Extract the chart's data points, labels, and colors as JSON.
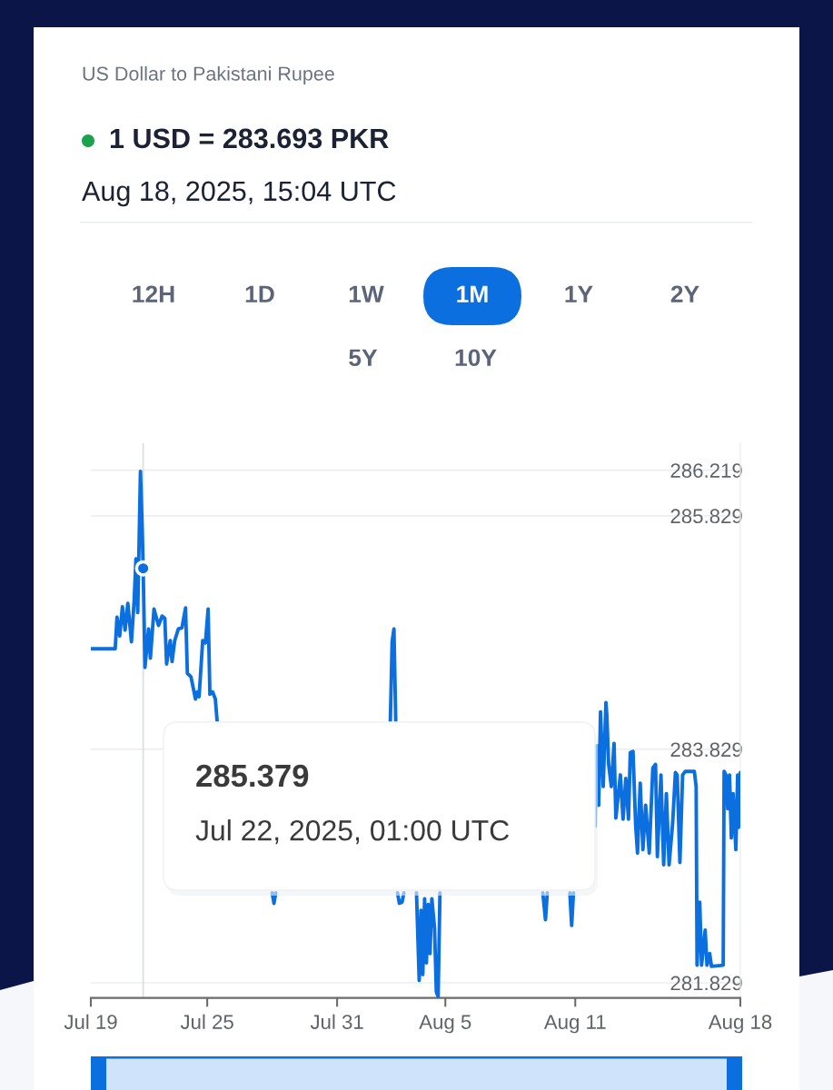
{
  "chart_data": {
    "type": "line",
    "title": "US Dollar to Pakistani Rupee",
    "subtitle": "1 USD = 283.693 PKR",
    "annotations": [
      "Aug 18, 2025, 15:04 UTC",
      "12H",
      "1D",
      "1W",
      "1M",
      "1Y",
      "2Y",
      "5Y",
      "10Y",
      "285.379\nJul 22, 2025, 01:00 UTC"
    ],
    "series": [
      {
        "color": "#0b6fdf",
        "x": [
          "2025-07-19T15:00",
          "2025-07-20T18:00",
          "2025-07-20T20:00",
          "2025-07-20T23:00",
          "2025-07-21T02:00",
          "2025-07-21T05:00",
          "2025-07-21T08:00",
          "2025-07-21T12:00",
          "2025-07-21T15:00",
          "2025-07-21T17:00",
          "2025-07-21T19:00",
          "2025-07-21T22:00",
          "2025-07-22T00:00",
          "2025-07-22T01:00",
          "2025-07-22T03:00",
          "2025-07-22T07:00",
          "2025-07-22T09:00",
          "2025-07-22T13:00",
          "2025-07-22T18:00",
          "2025-07-22T22:00",
          "2025-07-23T01:00",
          "2025-07-23T03:00",
          "2025-07-23T07:00",
          "2025-07-23T09:00",
          "2025-07-23T12:00",
          "2025-07-23T16:00",
          "2025-07-23T20:00",
          "2025-07-24T00:00",
          "2025-07-24T02:00",
          "2025-07-24T06:00",
          "2025-07-24T11:00",
          "2025-07-24T13:00",
          "2025-07-24T15:00",
          "2025-07-24T19:00",
          "2025-07-24T22:00",
          "2025-07-25T01:00",
          "2025-07-25T03:00",
          "2025-07-25T06:00",
          "2025-07-25T09:00",
          "2025-07-25T11:00",
          "2025-07-25T12:00",
          "2025-07-28T00:00",
          "2025-07-28T02:00",
          "2025-07-28T04:00",
          "2025-07-28T05:00",
          "2025-08-02T11:00",
          "2025-08-02T13:00",
          "2025-08-02T15:00",
          "2025-08-02T17:00",
          "2025-08-02T18:00",
          "2025-08-02T19:00",
          "2025-08-02T21:00",
          "2025-08-03T00:00",
          "2025-08-03T02:00",
          "2025-08-03T03:00",
          "2025-08-03T16:00",
          "2025-08-03T19:00",
          "2025-08-03T21:00",
          "2025-08-03T23:00",
          "2025-08-04T01:00",
          "2025-08-04T03:00",
          "2025-08-04T05:00",
          "2025-08-04T07:00",
          "2025-08-04T09:00",
          "2025-08-04T12:00",
          "2025-08-04T14:00",
          "2025-08-04T16:00",
          "2025-08-04T18:00",
          "2025-08-04T19:00",
          "2025-08-09T12:00",
          "2025-08-09T15:00",
          "2025-08-09T17:00",
          "2025-08-09T18:00",
          "2025-08-10T18:00",
          "2025-08-10T20:00",
          "2025-08-10T22:00",
          "2025-08-10T23:00",
          "2025-08-11T22:00",
          "2025-08-12T00:00",
          "2025-08-12T02:00",
          "2025-08-12T04:00",
          "2025-08-12T07:00",
          "2025-08-12T10:00",
          "2025-08-12T11:00",
          "2025-08-12T13:00",
          "2025-08-12T16:00",
          "2025-08-12T19:00",
          "2025-08-12T21:00",
          "2025-08-13T02:00",
          "2025-08-13T05:00",
          "2025-08-13T08:00",
          "2025-08-13T11:00",
          "2025-08-13T13:00",
          "2025-08-13T16:00",
          "2025-08-13T19:00",
          "2025-08-13T21:00",
          "2025-08-14T00:00",
          "2025-08-14T03:00",
          "2025-08-14T06:00",
          "2025-08-14T10:00",
          "2025-08-14T14:00",
          "2025-08-14T17:00",
          "2025-08-14T19:00",
          "2025-08-14T23:00",
          "2025-08-15T02:00",
          "2025-08-15T05:00",
          "2025-08-15T08:00",
          "2025-08-15T12:00",
          "2025-08-15T15:00",
          "2025-08-15T17:00",
          "2025-08-15T20:00",
          "2025-08-15T23:00",
          "2025-08-16T02:00",
          "2025-08-16T12:00",
          "2025-08-16T14:00",
          "2025-08-16T15:00",
          "2025-08-16T18:00",
          "2025-08-16T20:00",
          "2025-08-17T00:00",
          "2025-08-17T02:00",
          "2025-08-17T05:00",
          "2025-08-17T07:00",
          "2025-08-17T20:00",
          "2025-08-17T21:00",
          "2025-08-17T23:00",
          "2025-08-18T01:00",
          "2025-08-18T03:00",
          "2025-08-18T05:00",
          "2025-08-18T07:00",
          "2025-08-18T10:00",
          "2025-08-18T12:00",
          "2025-08-18T13:00",
          "2025-08-18T15:00"
        ],
        "values": [
          284.69,
          284.69,
          284.96,
          284.8,
          285.05,
          284.85,
          285.08,
          284.75,
          285.1,
          285.46,
          285.0,
          286.21,
          285.7,
          285.379,
          284.53,
          284.86,
          284.61,
          285.03,
          284.89,
          284.97,
          284.95,
          284.56,
          284.76,
          284.58,
          284.76,
          284.86,
          284.87,
          285.04,
          284.48,
          284.45,
          284.26,
          284.32,
          284.28,
          284.76,
          284.74,
          285.03,
          284.3,
          284.32,
          284.26,
          284.07,
          null,
          282.6,
          282.51,
          282.6,
          null,
          284.07,
          284.75,
          284.86,
          284.07,
          null,
          282.6,
          282.51,
          282.52,
          282.6,
          null,
          282.6,
          281.85,
          282.45,
          281.9,
          282.55,
          282.0,
          282.5,
          282.08,
          282.55,
          282.3,
          281.75,
          281.71,
          282.6,
          null,
          282.6,
          282.37,
          282.6,
          null,
          282.6,
          282.32,
          282.6,
          null,
          283.17,
          283.86,
          283.35,
          284.15,
          283.51,
          284.23,
          284.12,
          283.7,
          283.51,
          283.88,
          283.24,
          283.61,
          283.23,
          283.58,
          283.23,
          283.8,
          283.81,
          283.17,
          282.94,
          283.54,
          282.97,
          283.35,
          282.94,
          283.67,
          283.7,
          282.91,
          283.61,
          282.84,
          283.45,
          282.84,
          283.2,
          283.63,
          283.61,
          282.86,
          283.61,
          283.64,
          283.64,
          283.51,
          281.98,
          282.52,
          281.98,
          282.28,
          281.98,
          282.08,
          281.97,
          281.98,
          283.64,
          283.61,
          283.32,
          283.61,
          283.07,
          283.45,
          282.97,
          283.61,
          283.16,
          283.63
        ]
      },
      {
        "type": "scatter",
        "color": "#0b6fdf",
        "marker": "circle",
        "x": [
          "2025-07-22T01:00"
        ],
        "values": [
          285.379
        ]
      }
    ],
    "xlim": [
      "2025-07-19T15:00",
      "2025-08-18T15:00"
    ],
    "xticks": [
      {
        "value": "2025-07-19T15:00",
        "label": "Jul 19"
      },
      {
        "value": "2025-07-25",
        "label": "Jul 25"
      },
      {
        "value": "2025-07-31",
        "label": "Jul 31"
      },
      {
        "value": "2025-08-05",
        "label": "Aug 5"
      },
      {
        "value": "2025-08-11",
        "label": "Aug 11"
      },
      {
        "value": "2025-08-18T15:00",
        "label": "Aug 18"
      }
    ],
    "ylim": [
      281.7,
      286.45
    ],
    "yticks": [
      286.219,
      285.829,
      283.829,
      281.829
    ],
    "grid": "y",
    "ref_lines": [
      {
        "axis": "x",
        "value": "2025-07-22T01:00",
        "color": "#dcdfe3"
      }
    ]
  }
}
